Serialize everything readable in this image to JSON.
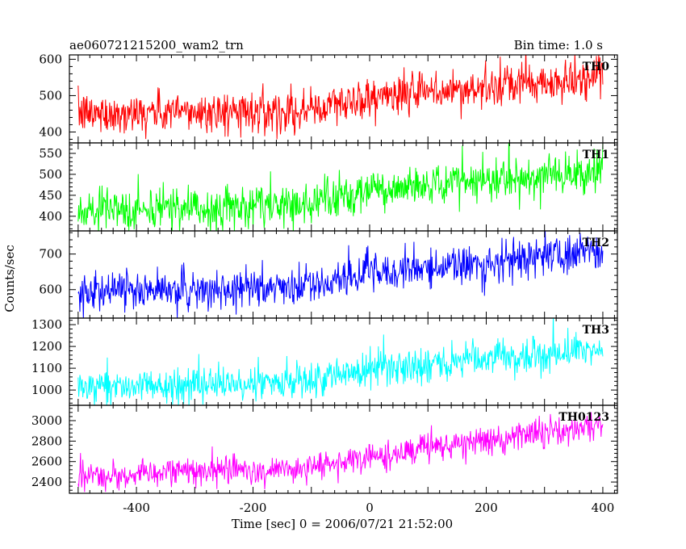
{
  "header": {
    "title": "ae060721215200_wam2_trn",
    "bin_time": "Bin time: 1.0 s"
  },
  "chart_data": {
    "type": "line",
    "xlabel": "Time [sec] 0 = 2006/07/21 21:52:00",
    "ylabel": "Counts/sec",
    "xlim": [
      -515,
      425
    ],
    "x_ticks": [
      -400,
      -200,
      0,
      200,
      400
    ],
    "x_range": [
      -500,
      400
    ],
    "bin_seconds": 1.0,
    "grid": false,
    "panels": [
      {
        "name": "TH0",
        "color": "#ff0000",
        "ylim": [
          370,
          612
        ],
        "y_ticks": [
          400,
          500,
          600
        ],
        "trend": [
          [
            -500,
            450
          ],
          [
            -100,
            460
          ],
          [
            0,
            495
          ],
          [
            400,
            545
          ]
        ],
        "noise": 28
      },
      {
        "name": "TH1",
        "color": "#00ff00",
        "ylim": [
          365,
          575
        ],
        "y_ticks": [
          400,
          450,
          500,
          550
        ],
        "trend": [
          [
            -500,
            410
          ],
          [
            -100,
            430
          ],
          [
            0,
            460
          ],
          [
            400,
            510
          ]
        ],
        "noise": 25
      },
      {
        "name": "TH2",
        "color": "#0000ff",
        "ylim": [
          520,
          765
        ],
        "y_ticks": [
          600,
          700
        ],
        "trend": [
          [
            -500,
            590
          ],
          [
            -100,
            610
          ],
          [
            0,
            645
          ],
          [
            400,
            705
          ]
        ],
        "noise": 28
      },
      {
        "name": "TH3",
        "color": "#00ffff",
        "ylim": [
          930,
          1330
        ],
        "y_ticks": [
          1000,
          1100,
          1200,
          1300
        ],
        "trend": [
          [
            -500,
            1005
          ],
          [
            -100,
            1040
          ],
          [
            0,
            1090
          ],
          [
            400,
            1190
          ]
        ],
        "noise": 40
      },
      {
        "name": "TH0123",
        "color": "#ff00ff",
        "ylim": [
          2290,
          3150
        ],
        "y_ticks": [
          2400,
          2600,
          2800,
          3000
        ],
        "trend": [
          [
            -500,
            2460
          ],
          [
            -100,
            2540
          ],
          [
            0,
            2660
          ],
          [
            400,
            2960
          ]
        ],
        "noise": 70
      }
    ]
  }
}
